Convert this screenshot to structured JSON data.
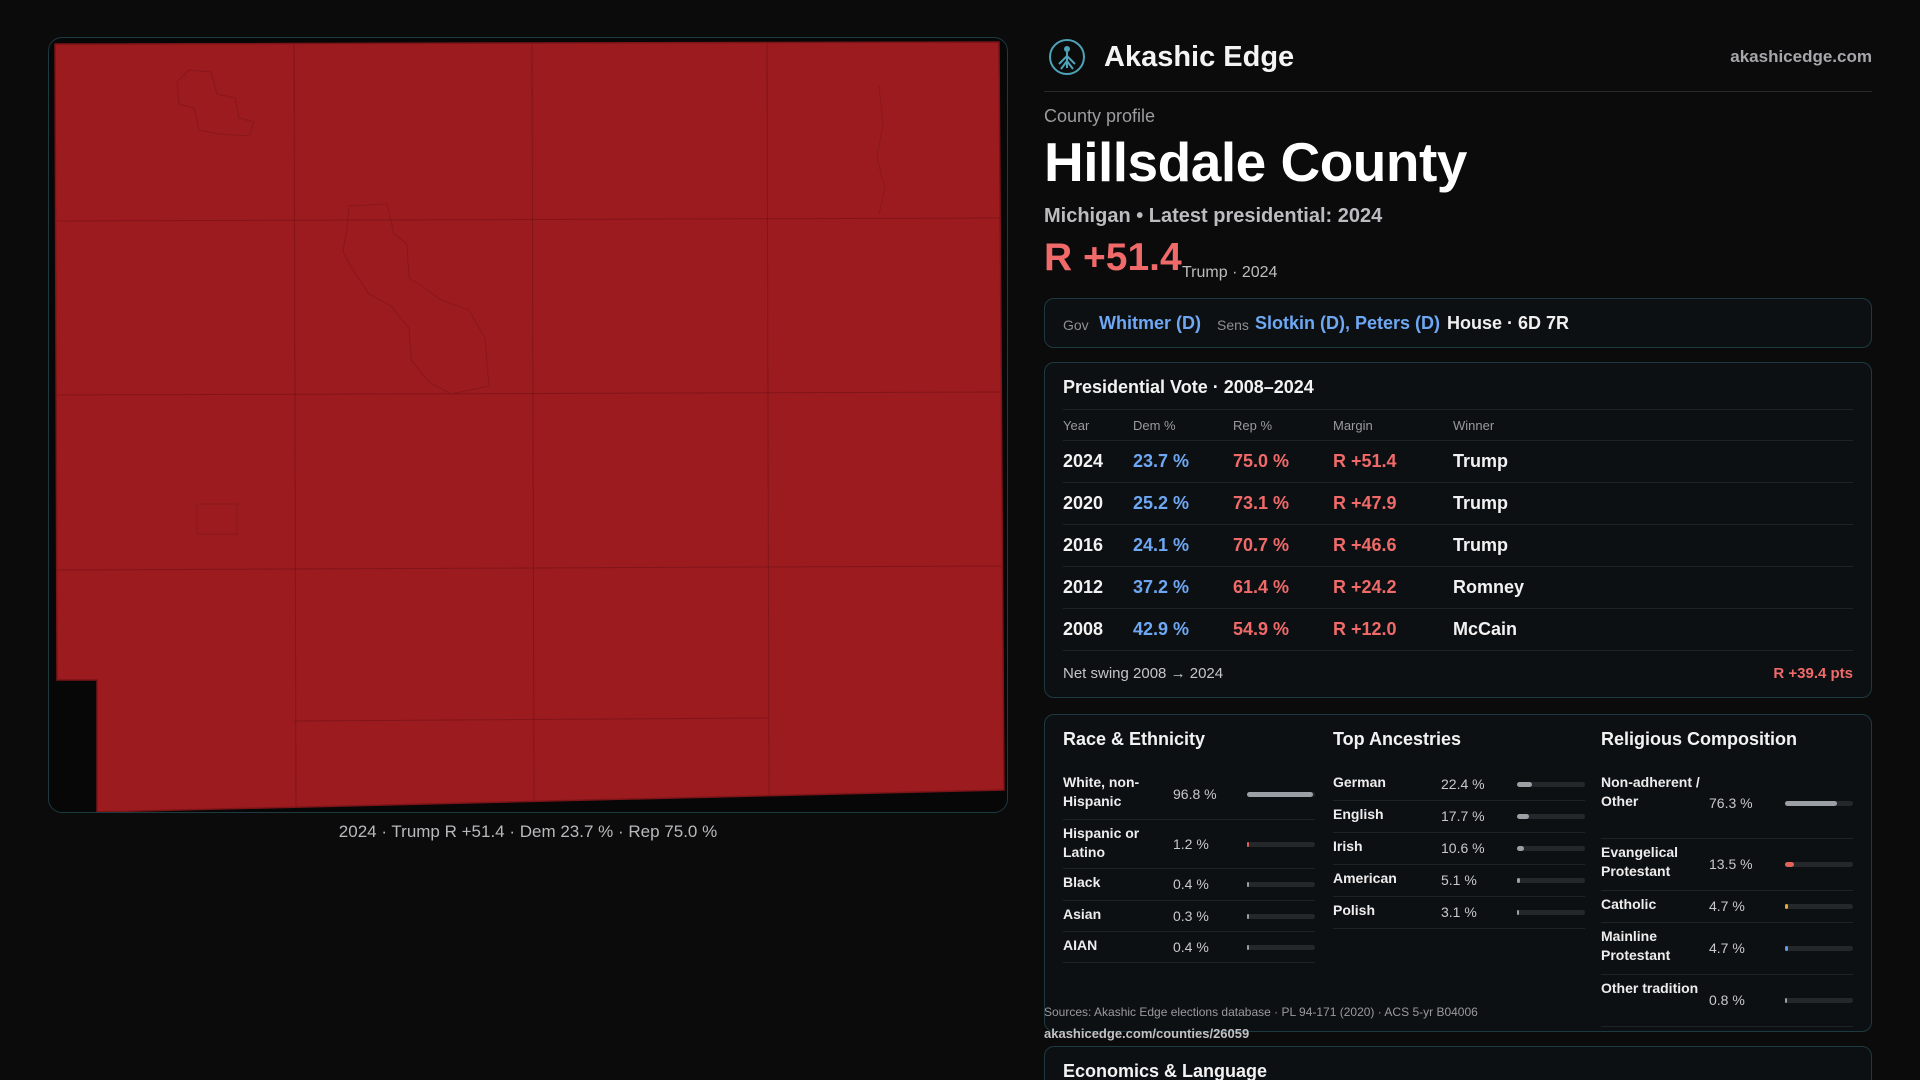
{
  "map": {
    "caption": "2024 · Trump R +51.4 · Dem 23.7 % · Rep 75.0 %",
    "fill_color": "#9c1b1f"
  },
  "brand": {
    "name": "Akashic Edge",
    "url": "akashicedge.com",
    "logo_icon": "tree-of-life-icon"
  },
  "profile": {
    "kicker": "County profile",
    "title": "Hillsdale County",
    "subtitle": "Michigan • Latest presidential: 2024",
    "margin": "R +51.4",
    "margin_note": "Trump · 2024"
  },
  "officials": {
    "gov_label": "Gov",
    "gov": "Whitmer (D)",
    "sens_label": "Sens",
    "sens": "Slotkin (D), Peters (D)",
    "house": "House · 6D 7R"
  },
  "presidential": {
    "title": "Presidential Vote · 2008–2024",
    "headers": [
      "Year",
      "Dem %",
      "Rep %",
      "Margin",
      "Winner"
    ],
    "rows": [
      {
        "year": "2024",
        "dem": "23.7 %",
        "rep": "75.0 %",
        "margin": "R +51.4",
        "winner": "Trump"
      },
      {
        "year": "2020",
        "dem": "25.2 %",
        "rep": "73.1 %",
        "margin": "R +47.9",
        "winner": "Trump"
      },
      {
        "year": "2016",
        "dem": "24.1 %",
        "rep": "70.7 %",
        "margin": "R +46.6",
        "winner": "Trump"
      },
      {
        "year": "2012",
        "dem": "37.2 %",
        "rep": "61.4 %",
        "margin": "R +24.2",
        "winner": "Romney"
      },
      {
        "year": "2008",
        "dem": "42.9 %",
        "rep": "54.9 %",
        "margin": "R +12.0",
        "winner": "McCain"
      }
    ],
    "swing_label": "Net swing 2008 → 2024",
    "swing_value": "R +39.4 pts"
  },
  "race": {
    "title": "Race & Ethnicity",
    "rows": [
      {
        "label": "White, non-Hispanic",
        "pct": "96.8 %",
        "value": 96.8,
        "color": "#9aa0a6"
      },
      {
        "label": "Hispanic or Latino",
        "pct": "1.2 %",
        "value": 1.2,
        "color": "#e0605a"
      },
      {
        "label": "Black",
        "pct": "0.4 %",
        "value": 0.4,
        "color": "#9aa0a6"
      },
      {
        "label": "Asian",
        "pct": "0.3 %",
        "value": 0.3,
        "color": "#9aa0a6"
      },
      {
        "label": "AIAN",
        "pct": "0.4 %",
        "value": 0.4,
        "color": "#9aa0a6"
      }
    ]
  },
  "ancestry": {
    "title": "Top Ancestries",
    "rows": [
      {
        "label": "German",
        "pct": "22.4 %",
        "value": 22.4,
        "color": "#9aa0a6"
      },
      {
        "label": "English",
        "pct": "17.7 %",
        "value": 17.7,
        "color": "#9aa0a6"
      },
      {
        "label": "Irish",
        "pct": "10.6 %",
        "value": 10.6,
        "color": "#9aa0a6"
      },
      {
        "label": "American",
        "pct": "5.1 %",
        "value": 5.1,
        "color": "#9aa0a6"
      },
      {
        "label": "Polish",
        "pct": "3.1 %",
        "value": 3.1,
        "color": "#9aa0a6"
      }
    ]
  },
  "religion": {
    "title": "Religious Composition",
    "rows": [
      {
        "label": "Non-adherent / Other",
        "pct": "76.3 %",
        "value": 76.3,
        "color": "#9aa0a6"
      },
      {
        "label": "Evangelical Protestant",
        "pct": "13.5 %",
        "value": 13.5,
        "color": "#e0605a"
      },
      {
        "label": "Catholic",
        "pct": "4.7 %",
        "value": 4.7,
        "color": "#e0a73a"
      },
      {
        "label": "Mainline Protestant",
        "pct": "4.7 %",
        "value": 4.7,
        "color": "#5f9be8"
      },
      {
        "label": "Other tradition",
        "pct": "0.8 %",
        "value": 0.8,
        "color": "#9aa0a6"
      }
    ]
  },
  "sources": {
    "text": "Sources: Akashic Edge elections database · PL 94-171 (2020) · ACS 5-yr B04006",
    "url": "akashicedge.com/counties/26059"
  },
  "economics": {
    "title": "Economics & Language"
  }
}
